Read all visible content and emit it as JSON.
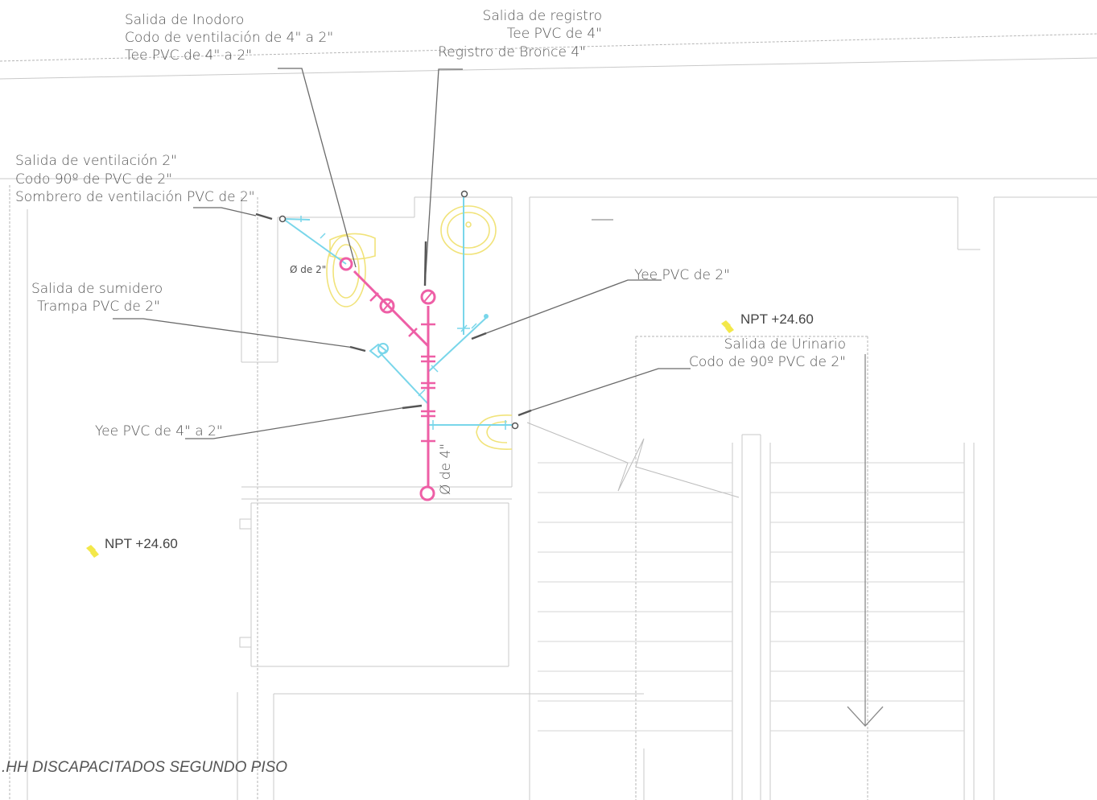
{
  "sheet_title": ".HH DISCAPACITADOS SEGUNDO PISO",
  "annotations": {
    "inodoro": [
      "Salida de Inodoro",
      "Codo de ventilación de 4\" a 2\"",
      "Tee PVC de 4\" a 2\""
    ],
    "registro": [
      "Salida de registro",
      "Tee PVC de 4\"",
      "Registro de Bronce 4\""
    ],
    "ventilacion": [
      "Salida de ventilación 2\"",
      "Codo 90º de PVC de 2\"",
      "Sombrero de ventilación PVC de 2\""
    ],
    "sumidero": [
      "Salida de sumidero",
      "Trampa PVC de 2\""
    ],
    "yee_2": "Yee PVC de 2\"",
    "yee_4a2": "Yee PVC de 4\" a 2\"",
    "urinario": [
      "Salida de Urinario",
      "Codo de 90º PVC de 2\""
    ]
  },
  "pipe_labels": {
    "diam_2": "Ø de 2\"",
    "diam_4": "Ø de 4\""
  },
  "levels": {
    "npt_right": "NPT  +24.60",
    "npt_left": "NPT  +24.60"
  },
  "colors": {
    "pipe_4in": "#ee5fa6",
    "pipe_2in": "#79d6ea",
    "fixtures": "#f1e37a",
    "level_marker": "#f3e84a"
  }
}
